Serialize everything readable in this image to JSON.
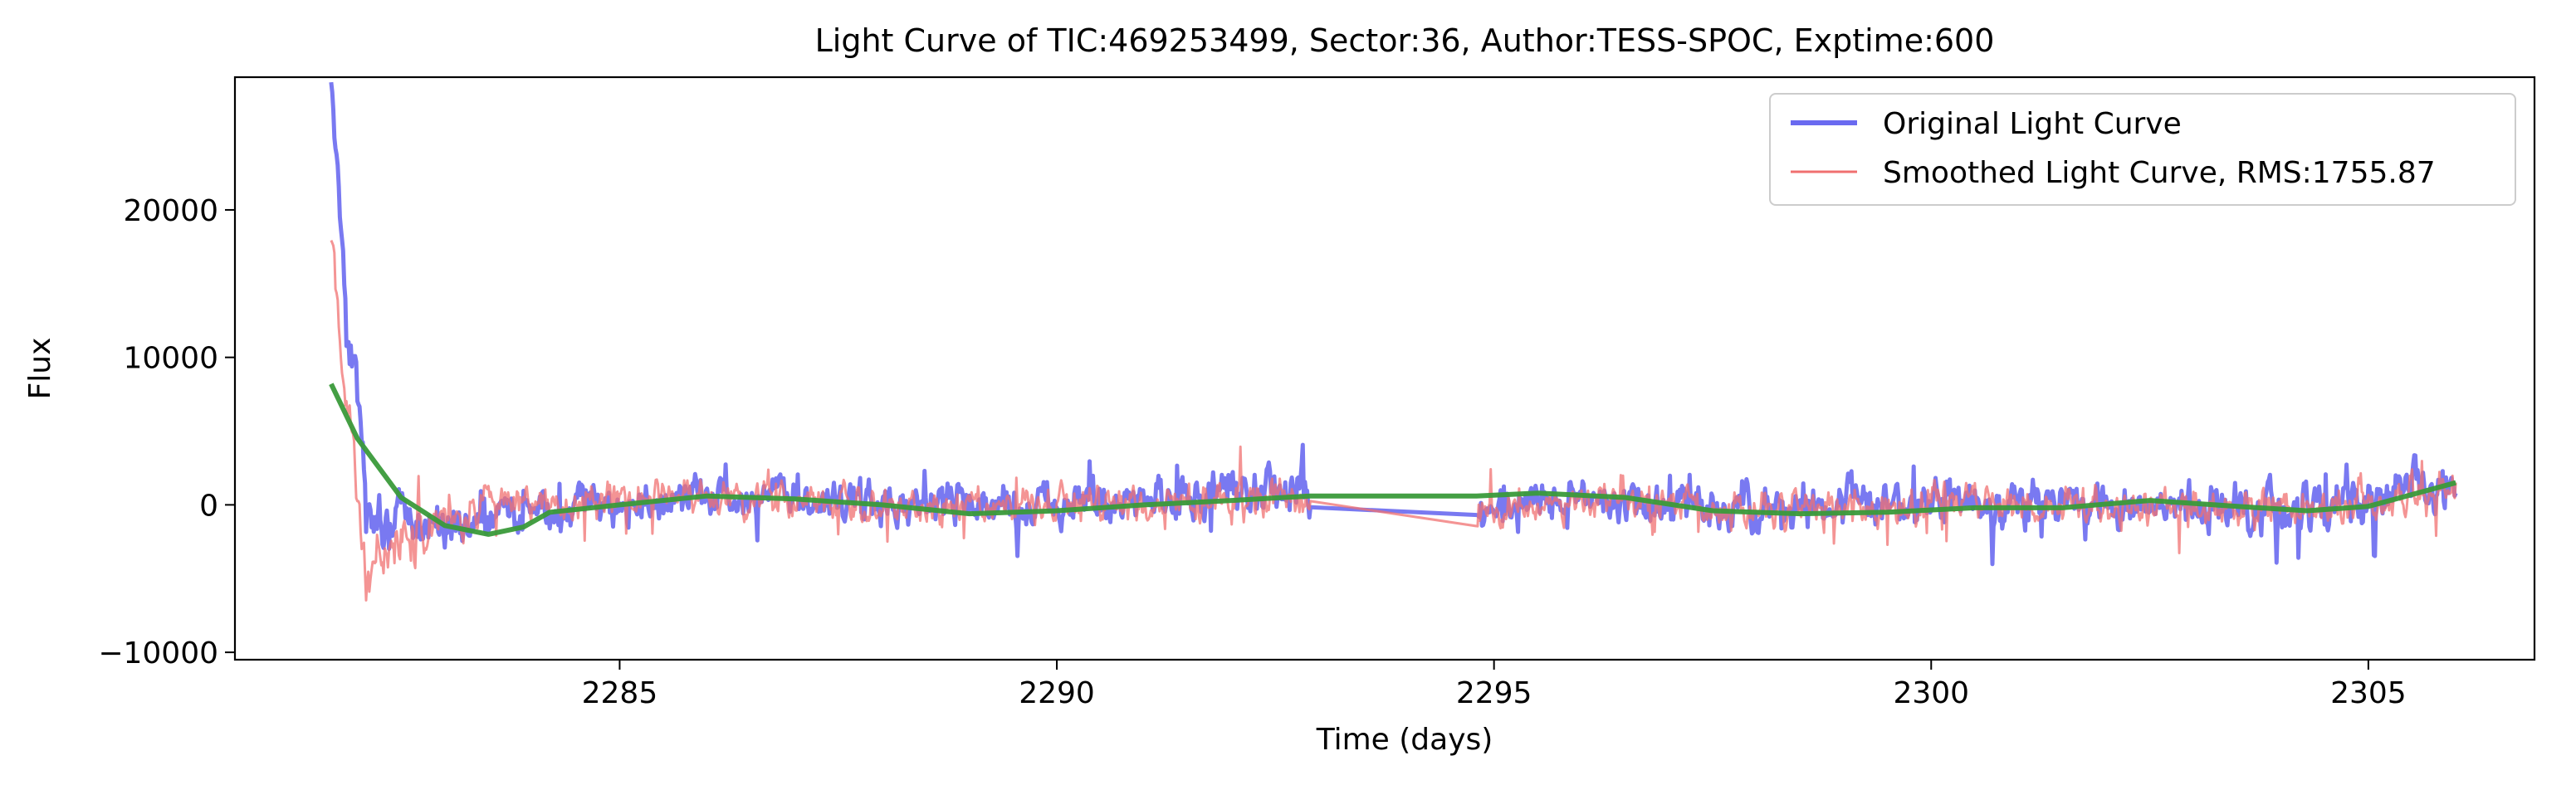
{
  "chart_data": {
    "type": "line",
    "title": "Light Curve of TIC:469253499, Sector:36, Author:TESS-SPOC, Exptime:600",
    "xlabel": "Time (days)",
    "ylabel": "Flux",
    "xlim": [
      2280.6,
      2306.9
    ],
    "ylim": [
      -10500,
      29000
    ],
    "x_ticks": [
      2285,
      2290,
      2295,
      2300,
      2305
    ],
    "x_tick_labels": [
      "2285",
      "2290",
      "2295",
      "2300",
      "2305"
    ],
    "y_ticks": [
      -10000,
      0,
      10000,
      20000
    ],
    "y_tick_labels": [
      "−10000",
      "0",
      "10000",
      "20000"
    ],
    "grid": false,
    "legend_position": "top-right",
    "gap": [
      2292.9,
      2294.8
    ],
    "series": [
      {
        "name": "Original Light Curve",
        "color": "#6a6af0",
        "style": "noisy",
        "envelope": [
          {
            "x": 2281.7,
            "y": 28000,
            "amp": 1500
          },
          {
            "x": 2281.9,
            "y": 12000,
            "amp": 3000
          },
          {
            "x": 2282.1,
            "y": 1000,
            "amp": 3000
          },
          {
            "x": 2282.4,
            "y": -1500,
            "amp": 2500
          },
          {
            "x": 2283.0,
            "y": -1500,
            "amp": 2000
          },
          {
            "x": 2284.0,
            "y": -500,
            "amp": 1800
          },
          {
            "x": 2286.0,
            "y": 500,
            "amp": 1800
          },
          {
            "x": 2288.0,
            "y": 0,
            "amp": 1800
          },
          {
            "x": 2290.0,
            "y": 0,
            "amp": 2000
          },
          {
            "x": 2291.5,
            "y": 500,
            "amp": 2000
          },
          {
            "x": 2292.9,
            "y": 1000,
            "amp": 2500
          },
          {
            "x": 2294.8,
            "y": -600,
            "amp": 1500
          },
          {
            "x": 2296.0,
            "y": 500,
            "amp": 1800
          },
          {
            "x": 2298.0,
            "y": -300,
            "amp": 2000
          },
          {
            "x": 2300.0,
            "y": 0,
            "amp": 2200
          },
          {
            "x": 2302.0,
            "y": 0,
            "amp": 2000
          },
          {
            "x": 2304.0,
            "y": -300,
            "amp": 2200
          },
          {
            "x": 2306.0,
            "y": 1200,
            "amp": 2200
          }
        ]
      },
      {
        "name": "Smoothed Light Curve, RMS:1755.87",
        "color": "#f07070",
        "style": "noisy",
        "envelope": [
          {
            "x": 2281.7,
            "y": 18000,
            "amp": 2000
          },
          {
            "x": 2281.9,
            "y": 5000,
            "amp": 3000
          },
          {
            "x": 2282.1,
            "y": -4500,
            "amp": 2500
          },
          {
            "x": 2282.4,
            "y": -2000,
            "amp": 2500
          },
          {
            "x": 2283.0,
            "y": -500,
            "amp": 2200
          },
          {
            "x": 2284.0,
            "y": 0,
            "amp": 1800
          },
          {
            "x": 2286.0,
            "y": 500,
            "amp": 1700
          },
          {
            "x": 2288.0,
            "y": 0,
            "amp": 1600
          },
          {
            "x": 2290.0,
            "y": 0,
            "amp": 1700
          },
          {
            "x": 2292.9,
            "y": 500,
            "amp": 2000
          },
          {
            "x": 2294.8,
            "y": -700,
            "amp": 1500
          },
          {
            "x": 2296.0,
            "y": 300,
            "amp": 1700
          },
          {
            "x": 2298.0,
            "y": -300,
            "amp": 1800
          },
          {
            "x": 2300.0,
            "y": 0,
            "amp": 1900
          },
          {
            "x": 2302.0,
            "y": 0,
            "amp": 1800
          },
          {
            "x": 2304.0,
            "y": -300,
            "amp": 1900
          },
          {
            "x": 2306.0,
            "y": 1000,
            "amp": 2000
          }
        ]
      },
      {
        "color": "#3a9a3a",
        "style": "smooth",
        "points": [
          {
            "x": 2281.7,
            "y": 8200
          },
          {
            "x": 2282.0,
            "y": 4500
          },
          {
            "x": 2282.5,
            "y": 500
          },
          {
            "x": 2283.0,
            "y": -1400
          },
          {
            "x": 2283.5,
            "y": -2000
          },
          {
            "x": 2283.9,
            "y": -1500
          },
          {
            "x": 2284.2,
            "y": -500
          },
          {
            "x": 2285.0,
            "y": 0
          },
          {
            "x": 2286.0,
            "y": 600
          },
          {
            "x": 2287.0,
            "y": 400
          },
          {
            "x": 2288.0,
            "y": 0
          },
          {
            "x": 2289.0,
            "y": -600
          },
          {
            "x": 2290.0,
            "y": -400
          },
          {
            "x": 2291.0,
            "y": 0
          },
          {
            "x": 2292.0,
            "y": 300
          },
          {
            "x": 2292.9,
            "y": 600
          },
          {
            "x": 2294.8,
            "y": 600
          },
          {
            "x": 2295.5,
            "y": 800
          },
          {
            "x": 2296.5,
            "y": 500
          },
          {
            "x": 2297.5,
            "y": -400
          },
          {
            "x": 2298.5,
            "y": -600
          },
          {
            "x": 2299.5,
            "y": -500
          },
          {
            "x": 2300.5,
            "y": -200
          },
          {
            "x": 2301.5,
            "y": -200
          },
          {
            "x": 2302.5,
            "y": 300
          },
          {
            "x": 2303.5,
            "y": -100
          },
          {
            "x": 2304.3,
            "y": -400
          },
          {
            "x": 2305.0,
            "y": -100
          },
          {
            "x": 2306.0,
            "y": 1500
          }
        ]
      }
    ]
  }
}
